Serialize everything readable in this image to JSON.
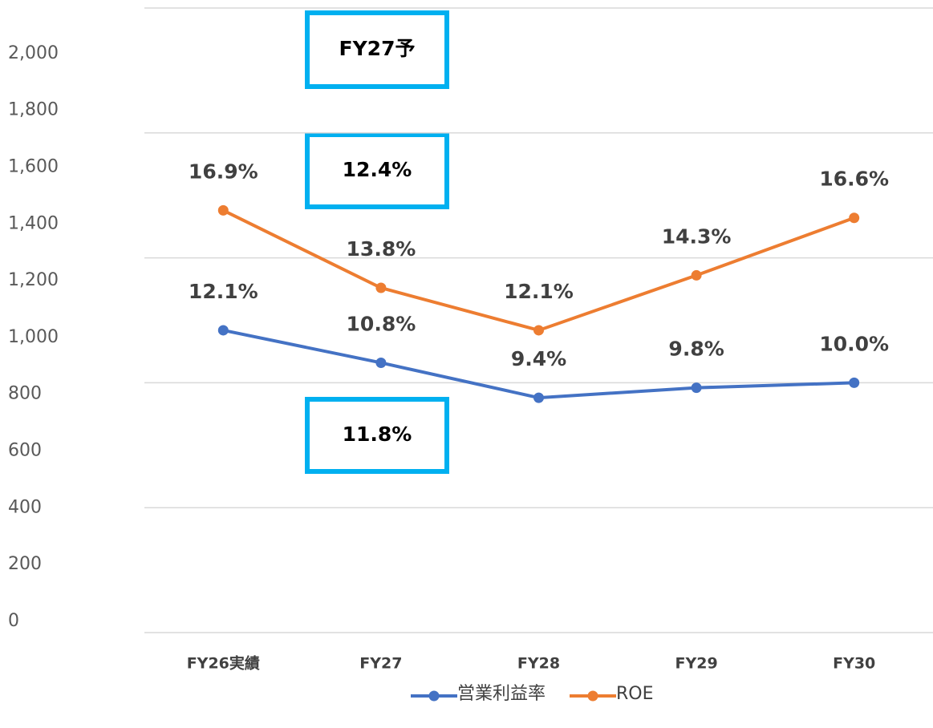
{
  "chart_data": {
    "type": "line",
    "categories": [
      "FY26実績",
      "FY27",
      "FY28",
      "FY29",
      "FY30"
    ],
    "series": [
      {
        "name": "営業利益率",
        "color": "#4472c4",
        "values": [
          12.1,
          10.8,
          9.4,
          9.8,
          10.0
        ],
        "value_labels": [
          "12.1%",
          "10.8%",
          "9.4%",
          "9.8%",
          "10.0%"
        ],
        "axis": "y2"
      },
      {
        "name": "ROE",
        "color": "#ed7d31",
        "values": [
          16.9,
          13.8,
          12.1,
          14.3,
          16.6
        ],
        "value_labels": [
          "16.9%",
          "13.8%",
          "12.1%",
          "14.3%",
          "16.6%"
        ],
        "axis": "y2"
      }
    ],
    "ylim": [
      0,
      2200
    ],
    "yticks": [
      0,
      {
        "value": 200,
        "label": "200"
      },
      400,
      600,
      800,
      {
        "value": 1000,
        "label": "1,000"
      },
      {
        "value": 1200,
        "label": "1,200"
      },
      {
        "value": 1400,
        "label": "1,400"
      },
      {
        "value": 1600,
        "label": "1,600"
      },
      {
        "value": 1800,
        "label": "1,800"
      },
      {
        "value": 2000,
        "label": "2,000"
      }
    ],
    "y2lim": [
      0,
      25
    ],
    "y2ticks": [
      0,
      5,
      10,
      15,
      20,
      25
    ],
    "grid": true,
    "legend": "bottom",
    "annotations": [
      "FY27予",
      "12.4%",
      "11.8%"
    ]
  }
}
